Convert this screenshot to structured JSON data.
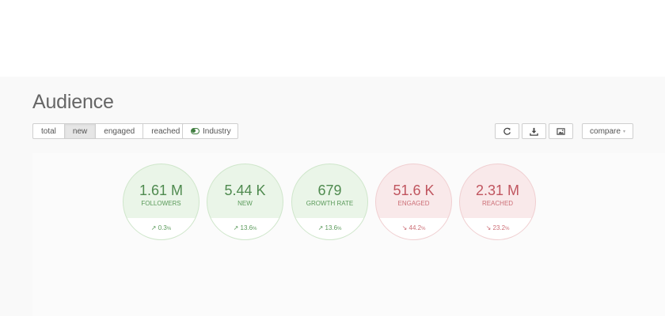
{
  "header": {
    "title": "Audience"
  },
  "filters": {
    "tabs": [
      {
        "label": "total",
        "active": false
      },
      {
        "label": "new",
        "active": true
      },
      {
        "label": "engaged",
        "active": false
      },
      {
        "label": "reached",
        "active": false
      }
    ],
    "industry_label": "Industry"
  },
  "toolbar": {
    "refresh_icon": "refresh-icon",
    "download_icon": "download-icon",
    "image_icon": "image-icon",
    "compare_label": "compare",
    "compare_caret": "▾"
  },
  "metrics": [
    {
      "value": "1.61 M",
      "label": "FOLLOWERS",
      "arrow": "↗",
      "change": "0.3",
      "unit": "%",
      "trend": "up"
    },
    {
      "value": "5.44 K",
      "label": "NEW",
      "arrow": "↗",
      "change": "13.6",
      "unit": "%",
      "trend": "up"
    },
    {
      "value": "679",
      "label": "GROWTH RATE",
      "arrow": "↗",
      "change": "13.6",
      "unit": "%",
      "trend": "up"
    },
    {
      "value": "51.6 K",
      "label": "ENGAGED",
      "arrow": "↘",
      "change": "44.2",
      "unit": "%",
      "trend": "down"
    },
    {
      "value": "2.31 M",
      "label": "REACHED",
      "arrow": "↘",
      "change": "23.2",
      "unit": "%",
      "trend": "down"
    }
  ],
  "colors": {
    "positive": "#4f8a4f",
    "negative": "#c0555f",
    "positive_bg": "#eaf5e8",
    "negative_bg": "#f9e9ea"
  }
}
